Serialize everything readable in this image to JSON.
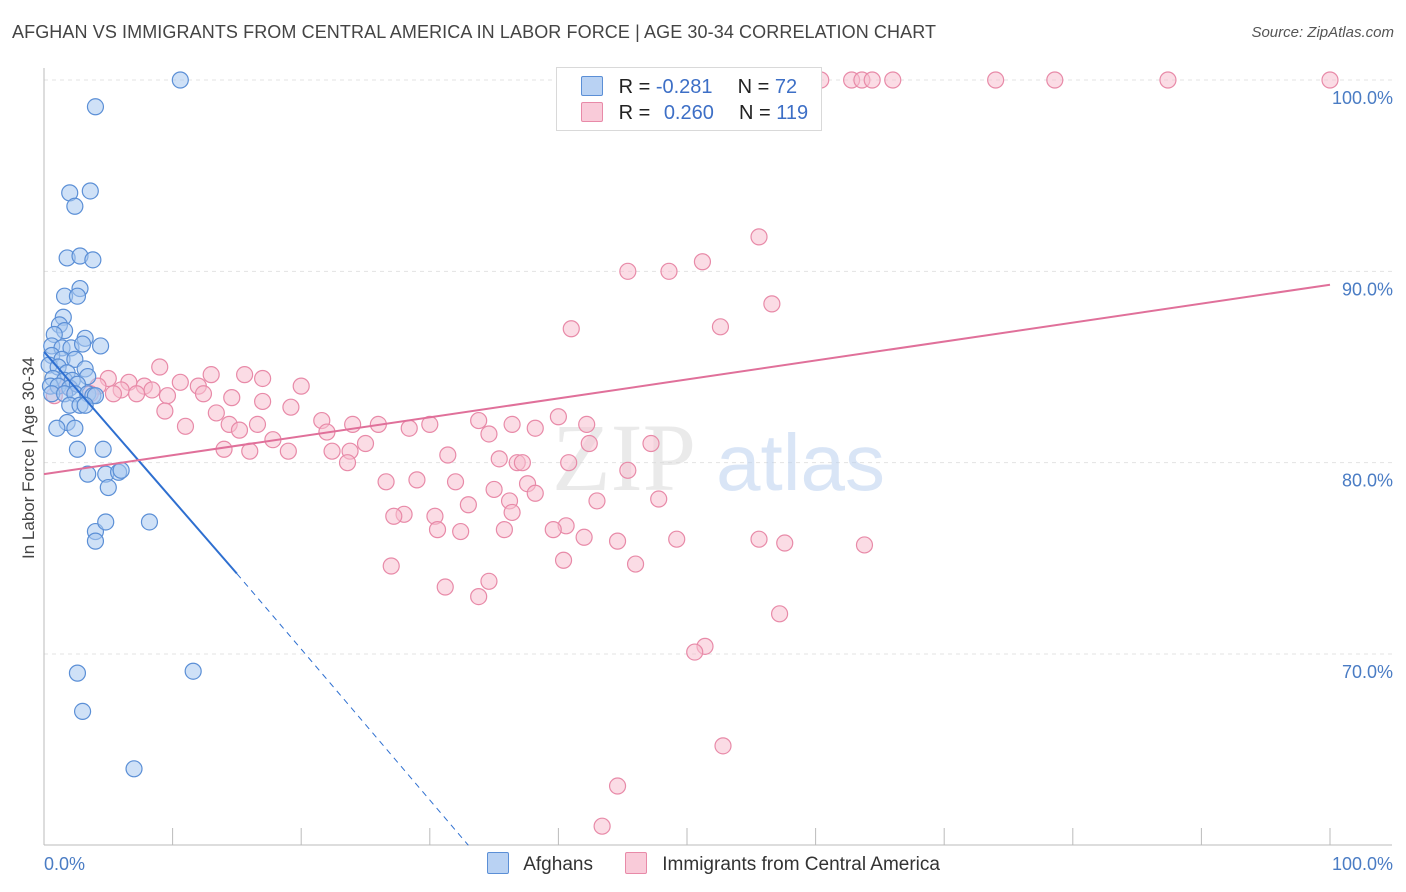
{
  "header": {
    "title": "AFGHAN VS IMMIGRANTS FROM CENTRAL AMERICA IN LABOR FORCE | AGE 30-34 CORRELATION CHART",
    "source": "Source: ZipAtlas.com"
  },
  "watermark": {
    "zip": "ZIP",
    "atlas": "atlas"
  },
  "legend": {
    "rows": [
      {
        "r_label": "R =",
        "r_value": "-0.281",
        "n_label": "N =",
        "n_value": "72"
      },
      {
        "r_label": "R =",
        "r_value": "0.260",
        "n_label": "N =",
        "n_value": "119"
      }
    ]
  },
  "colors": {
    "afghans_fill": "#a8c8f0",
    "afghans_stroke": "#5b8fd6",
    "afghans_line": "#2e6fd0",
    "central_fill": "#f7bfd0",
    "central_stroke": "#e88aa8",
    "central_line": "#e0709a",
    "axis_text": "#4a7cc4"
  },
  "chart_data": {
    "type": "scatter",
    "title": "AFGHAN VS IMMIGRANTS FROM CENTRAL AMERICA IN LABOR FORCE | AGE 30-34 CORRELATION CHART",
    "xlabel": "",
    "ylabel": "In Labor Force | Age 30-34",
    "xlim": [
      0,
      100
    ],
    "ylim": [
      60,
      100
    ],
    "x_tick_labels": [
      "0.0%",
      "100.0%"
    ],
    "y_ticks": [
      70,
      80,
      90,
      100
    ],
    "y_tick_labels": [
      "70.0%",
      "80.0%",
      "90.0%",
      "100.0%"
    ],
    "series": [
      {
        "name": "Afghans",
        "r": -0.281,
        "n": 72,
        "trend": {
          "x0": 0,
          "y0": 85.8,
          "x1": 15,
          "y1": 74.2,
          "dash_to_x": 33,
          "dash_to_y": 60
        },
        "points": [
          [
            10.6,
            100
          ],
          [
            4,
            98.6
          ],
          [
            2,
            94.1
          ],
          [
            3.6,
            94.2
          ],
          [
            2.4,
            93.4
          ],
          [
            1.8,
            90.7
          ],
          [
            2.8,
            90.8
          ],
          [
            3.8,
            90.6
          ],
          [
            2.8,
            89.1
          ],
          [
            1.6,
            88.7
          ],
          [
            2.6,
            88.7
          ],
          [
            1.5,
            87.6
          ],
          [
            1.2,
            87.2
          ],
          [
            1.6,
            86.9
          ],
          [
            0.8,
            86.7
          ],
          [
            3.2,
            86.5
          ],
          [
            0.6,
            86.1
          ],
          [
            1.4,
            86
          ],
          [
            2.1,
            86
          ],
          [
            3,
            86.2
          ],
          [
            4.4,
            86.1
          ],
          [
            0.6,
            85.6
          ],
          [
            1.4,
            85.4
          ],
          [
            2.4,
            85.4
          ],
          [
            0.4,
            85.1
          ],
          [
            1.1,
            85
          ],
          [
            1.8,
            84.7
          ],
          [
            3.2,
            84.9
          ],
          [
            0.7,
            84.4
          ],
          [
            1.6,
            84.3
          ],
          [
            2.2,
            84.3
          ],
          [
            3.4,
            84.5
          ],
          [
            0.5,
            84
          ],
          [
            1.1,
            84
          ],
          [
            2,
            83.9
          ],
          [
            2.6,
            84.1
          ],
          [
            0.6,
            83.6
          ],
          [
            1.6,
            83.6
          ],
          [
            2.4,
            83.6
          ],
          [
            3.4,
            83.6
          ],
          [
            3.8,
            83.5
          ],
          [
            4,
            83.5
          ],
          [
            2,
            83
          ],
          [
            2.8,
            83
          ],
          [
            3.2,
            83
          ],
          [
            1.8,
            82.1
          ],
          [
            1,
            81.8
          ],
          [
            2.4,
            81.8
          ],
          [
            2.6,
            80.7
          ],
          [
            4.6,
            80.7
          ],
          [
            3.4,
            79.4
          ],
          [
            4.8,
            79.4
          ],
          [
            5.8,
            79.5
          ],
          [
            6,
            79.6
          ],
          [
            5,
            78.7
          ],
          [
            4,
            76.4
          ],
          [
            4.8,
            76.9
          ],
          [
            8.2,
            76.9
          ],
          [
            4,
            75.9
          ],
          [
            11.6,
            69.1
          ],
          [
            2.6,
            69
          ],
          [
            3,
            67
          ],
          [
            7,
            64
          ]
        ]
      },
      {
        "name": "Immigrants from Central America",
        "r": 0.26,
        "n": 119,
        "trend": {
          "x0": 0,
          "y0": 79.4,
          "x1": 100,
          "y1": 89.3
        },
        "points": [
          [
            45,
            100
          ],
          [
            48.6,
            100
          ],
          [
            53.6,
            100
          ],
          [
            59,
            100
          ],
          [
            60.4,
            100
          ],
          [
            62.8,
            100
          ],
          [
            63.6,
            100
          ],
          [
            64.4,
            100
          ],
          [
            66,
            100
          ],
          [
            74,
            100
          ],
          [
            78.6,
            100
          ],
          [
            87.4,
            100
          ],
          [
            100,
            100
          ],
          [
            55.6,
            91.8
          ],
          [
            51.2,
            90.5
          ],
          [
            48.6,
            90
          ],
          [
            45.4,
            90
          ],
          [
            56.6,
            88.3
          ],
          [
            41,
            87
          ],
          [
            52.6,
            87.1
          ],
          [
            9,
            85
          ],
          [
            13,
            84.6
          ],
          [
            15.6,
            84.6
          ],
          [
            17,
            84.4
          ],
          [
            5,
            84.4
          ],
          [
            6.6,
            84.2
          ],
          [
            7.8,
            84
          ],
          [
            10.6,
            84.2
          ],
          [
            4.2,
            84
          ],
          [
            6,
            83.8
          ],
          [
            8.4,
            83.8
          ],
          [
            12,
            84
          ],
          [
            20,
            84
          ],
          [
            3.6,
            83.6
          ],
          [
            5.4,
            83.6
          ],
          [
            7.2,
            83.6
          ],
          [
            9.6,
            83.5
          ],
          [
            12.4,
            83.6
          ],
          [
            14.6,
            83.4
          ],
          [
            1.8,
            84
          ],
          [
            0.8,
            83.5
          ],
          [
            17,
            83.2
          ],
          [
            19.2,
            82.9
          ],
          [
            9.4,
            82.7
          ],
          [
            13.4,
            82.6
          ],
          [
            21.6,
            82.2
          ],
          [
            14.4,
            82
          ],
          [
            16.6,
            82
          ],
          [
            24,
            82
          ],
          [
            26,
            82
          ],
          [
            30,
            82
          ],
          [
            40,
            82.4
          ],
          [
            42.2,
            82
          ],
          [
            33.8,
            82.2
          ],
          [
            36.4,
            82
          ],
          [
            28.4,
            81.8
          ],
          [
            38.2,
            81.8
          ],
          [
            11,
            81.9
          ],
          [
            15.2,
            81.7
          ],
          [
            22,
            81.6
          ],
          [
            34.6,
            81.5
          ],
          [
            42.4,
            81
          ],
          [
            47.2,
            81
          ],
          [
            17.8,
            81.2
          ],
          [
            25,
            81
          ],
          [
            23.8,
            80.6
          ],
          [
            19,
            80.6
          ],
          [
            31.4,
            80.4
          ],
          [
            36.8,
            80
          ],
          [
            37.2,
            80
          ],
          [
            40.8,
            80
          ],
          [
            35.4,
            80.2
          ],
          [
            14,
            80.7
          ],
          [
            16,
            80.6
          ],
          [
            22.4,
            80.6
          ],
          [
            23.6,
            80
          ],
          [
            45.4,
            79.6
          ],
          [
            32,
            79
          ],
          [
            29,
            79.1
          ],
          [
            26.6,
            79
          ],
          [
            37.6,
            78.9
          ],
          [
            35,
            78.6
          ],
          [
            38.2,
            78.4
          ],
          [
            47.8,
            78.1
          ],
          [
            36.2,
            78
          ],
          [
            43,
            78
          ],
          [
            28,
            77.3
          ],
          [
            30.4,
            77.2
          ],
          [
            33,
            77.8
          ],
          [
            36.4,
            77.4
          ],
          [
            27.2,
            77.2
          ],
          [
            35.8,
            76.5
          ],
          [
            32.4,
            76.4
          ],
          [
            30.6,
            76.5
          ],
          [
            40.6,
            76.7
          ],
          [
            39.6,
            76.5
          ],
          [
            44.6,
            75.9
          ],
          [
            42,
            76.1
          ],
          [
            49.2,
            76
          ],
          [
            55.6,
            76
          ],
          [
            57.6,
            75.8
          ],
          [
            63.8,
            75.7
          ],
          [
            27,
            74.6
          ],
          [
            40.4,
            74.9
          ],
          [
            46,
            74.7
          ],
          [
            34.6,
            73.8
          ],
          [
            31.2,
            73.5
          ],
          [
            33.8,
            73
          ],
          [
            57.2,
            72.1
          ],
          [
            51.4,
            70.4
          ],
          [
            50.6,
            70.1
          ],
          [
            52.8,
            65.2
          ],
          [
            44.6,
            63.1
          ],
          [
            43.4,
            61
          ]
        ]
      }
    ]
  },
  "bottom_legend": {
    "items": [
      {
        "label": "Afghans"
      },
      {
        "label": "Immigrants from Central America"
      }
    ]
  }
}
